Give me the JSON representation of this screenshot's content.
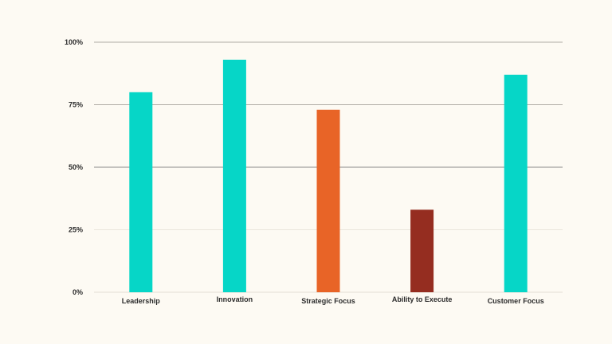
{
  "chart_data": {
    "type": "bar",
    "categories": [
      "Leadership",
      "Innovation",
      "Strategic Focus",
      "Ability to Execute",
      "Customer Focus"
    ],
    "values": [
      80,
      93,
      73,
      33,
      87
    ],
    "bar_colors": [
      "#06d6c7",
      "#06d6c7",
      "#e86427",
      "#952d20",
      "#06d6c7"
    ],
    "ylim": [
      0,
      100
    ],
    "yticks": [
      0,
      25,
      50,
      75,
      100
    ],
    "ytick_labels": [
      "0%",
      "25%",
      "50%",
      "75%",
      "100%"
    ],
    "grid_colors": [
      "#e2ddd4",
      "#ebe6dd",
      "#8a8a8a",
      "#b0aca5",
      "#b0aca5"
    ],
    "title": "",
    "xlabel": "",
    "ylabel": ""
  }
}
